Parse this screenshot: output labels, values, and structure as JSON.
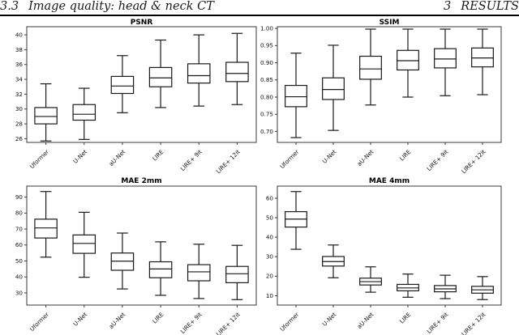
{
  "header": {
    "section_number": "3.3",
    "section_title": "Image quality: head & neck CT",
    "chapter_number": "3",
    "running_title": "RESULTS"
  },
  "colors": {
    "frame": "#3a3a3a",
    "box_line": "#1a1a1a",
    "background": "#ffffff",
    "rule": "#000000"
  },
  "chart_data": [
    {
      "type": "boxplot",
      "title": "PSNR",
      "ylim": [
        25.5,
        41.1
      ],
      "ytick_values": [
        26,
        28,
        30,
        32,
        34,
        36,
        38,
        40
      ],
      "ytick_labels": [
        "26",
        "28",
        "30",
        "32",
        "34",
        "36",
        "38",
        "40"
      ],
      "categories": [
        "Uformer",
        "U-Net",
        "aU-Net",
        "LIRE",
        "LIRE+ 9it",
        "LIRE+ 12it"
      ],
      "boxes": [
        {
          "label": "Uformer",
          "whislo": 25.7,
          "q1": 28.0,
          "med": 29.0,
          "q3": 30.2,
          "whishi": 33.4
        },
        {
          "label": "U-Net",
          "whislo": 25.9,
          "q1": 28.5,
          "med": 29.3,
          "q3": 30.6,
          "whishi": 32.8
        },
        {
          "label": "aU-Net",
          "whislo": 29.5,
          "q1": 32.1,
          "med": 33.1,
          "q3": 34.4,
          "whishi": 37.2
        },
        {
          "label": "LIRE",
          "whislo": 30.2,
          "q1": 33.0,
          "med": 34.2,
          "q3": 35.6,
          "whishi": 39.3
        },
        {
          "label": "LIRE+ 9it",
          "whislo": 30.4,
          "q1": 33.5,
          "med": 34.5,
          "q3": 36.1,
          "whishi": 40.0
        },
        {
          "label": "LIRE+ 12it",
          "whislo": 30.6,
          "q1": 33.7,
          "med": 34.8,
          "q3": 36.3,
          "whishi": 40.2
        }
      ]
    },
    {
      "type": "boxplot",
      "title": "SSIM",
      "ylim": [
        0.668,
        1.005
      ],
      "ytick_values": [
        0.7,
        0.75,
        0.8,
        0.85,
        0.9,
        0.95,
        1.0
      ],
      "ytick_labels": [
        "0.70",
        "0.75",
        "0.80",
        "0.85",
        "0.90",
        "0.95",
        "1.00"
      ],
      "categories": [
        "Uformer",
        "U-Net",
        "aU-Net",
        "LIRE",
        "LIRE+ 9it",
        "LIRE+ 12it"
      ],
      "boxes": [
        {
          "label": "Uformer",
          "whislo": 0.682,
          "q1": 0.772,
          "med": 0.801,
          "q3": 0.834,
          "whishi": 0.928
        },
        {
          "label": "U-Net",
          "whislo": 0.703,
          "q1": 0.793,
          "med": 0.822,
          "q3": 0.856,
          "whishi": 0.951
        },
        {
          "label": "aU-Net",
          "whislo": 0.777,
          "q1": 0.852,
          "med": 0.882,
          "q3": 0.919,
          "whishi": 0.998
        },
        {
          "label": "LIRE",
          "whislo": 0.8,
          "q1": 0.879,
          "med": 0.906,
          "q3": 0.936,
          "whishi": 0.998
        },
        {
          "label": "LIRE+ 9it",
          "whislo": 0.804,
          "q1": 0.885,
          "med": 0.911,
          "q3": 0.941,
          "whishi": 0.998
        },
        {
          "label": "LIRE+ 12it",
          "whislo": 0.807,
          "q1": 0.888,
          "med": 0.914,
          "q3": 0.943,
          "whishi": 0.998
        }
      ]
    },
    {
      "type": "boxplot",
      "title": "MAE 2mm",
      "ylim": [
        22.4,
        96.9
      ],
      "ytick_values": [
        30,
        40,
        50,
        60,
        70,
        80,
        90
      ],
      "ytick_labels": [
        "30",
        "40",
        "50",
        "60",
        "70",
        "80",
        "90"
      ],
      "categories": [
        "Uformer",
        "U-Net",
        "aU-Net",
        "LIRE",
        "LIRE+ 9it",
        "LIRE+ 12it"
      ],
      "boxes": [
        {
          "label": "Uformer",
          "whislo": 52.4,
          "q1": 64.4,
          "med": 70.7,
          "q3": 76.2,
          "whishi": 93.5
        },
        {
          "label": "U-Net",
          "whislo": 39.8,
          "q1": 54.8,
          "med": 61.0,
          "q3": 66.3,
          "whishi": 80.5
        },
        {
          "label": "aU-Net",
          "whislo": 32.5,
          "q1": 44.2,
          "med": 49.9,
          "q3": 55.0,
          "whishi": 67.5
        },
        {
          "label": "LIRE",
          "whislo": 28.5,
          "q1": 39.5,
          "med": 45.0,
          "q3": 49.5,
          "whishi": 62.0
        },
        {
          "label": "LIRE+ 9it",
          "whislo": 26.5,
          "q1": 37.6,
          "med": 43.2,
          "q3": 47.7,
          "whishi": 60.5
        },
        {
          "label": "LIRE+ 12it",
          "whislo": 25.8,
          "q1": 36.4,
          "med": 42.0,
          "q3": 46.6,
          "whishi": 59.8
        }
      ]
    },
    {
      "type": "boxplot",
      "title": "MAE 4mm",
      "ylim": [
        5.2,
        66.2
      ],
      "ytick_values": [
        10,
        20,
        30,
        40,
        50,
        60
      ],
      "ytick_labels": [
        "10",
        "20",
        "30",
        "40",
        "50",
        "60"
      ],
      "categories": [
        "Uformer",
        "U-Net",
        "aU-Net",
        "LIRE",
        "LIRE+ 9it",
        "LIRE+ 12it"
      ],
      "boxes": [
        {
          "label": "Uformer",
          "whislo": 33.8,
          "q1": 45.2,
          "med": 49.3,
          "q3": 53.1,
          "whishi": 63.4
        },
        {
          "label": "U-Net",
          "whislo": 19.2,
          "q1": 25.2,
          "med": 27.5,
          "q3": 30.1,
          "whishi": 36.0
        },
        {
          "label": "aU-Net",
          "whislo": 11.8,
          "q1": 15.5,
          "med": 17.2,
          "q3": 19.0,
          "whishi": 24.8
        },
        {
          "label": "LIRE",
          "whislo": 9.2,
          "q1": 12.5,
          "med": 14.0,
          "q3": 15.8,
          "whishi": 21.1
        },
        {
          "label": "LIRE+ 9it",
          "whislo": 8.5,
          "q1": 12.0,
          "med": 13.5,
          "q3": 15.2,
          "whishi": 20.5
        },
        {
          "label": "LIRE+ 12it",
          "whislo": 8.0,
          "q1": 11.3,
          "med": 13.0,
          "q3": 14.8,
          "whishi": 19.8
        }
      ]
    }
  ]
}
